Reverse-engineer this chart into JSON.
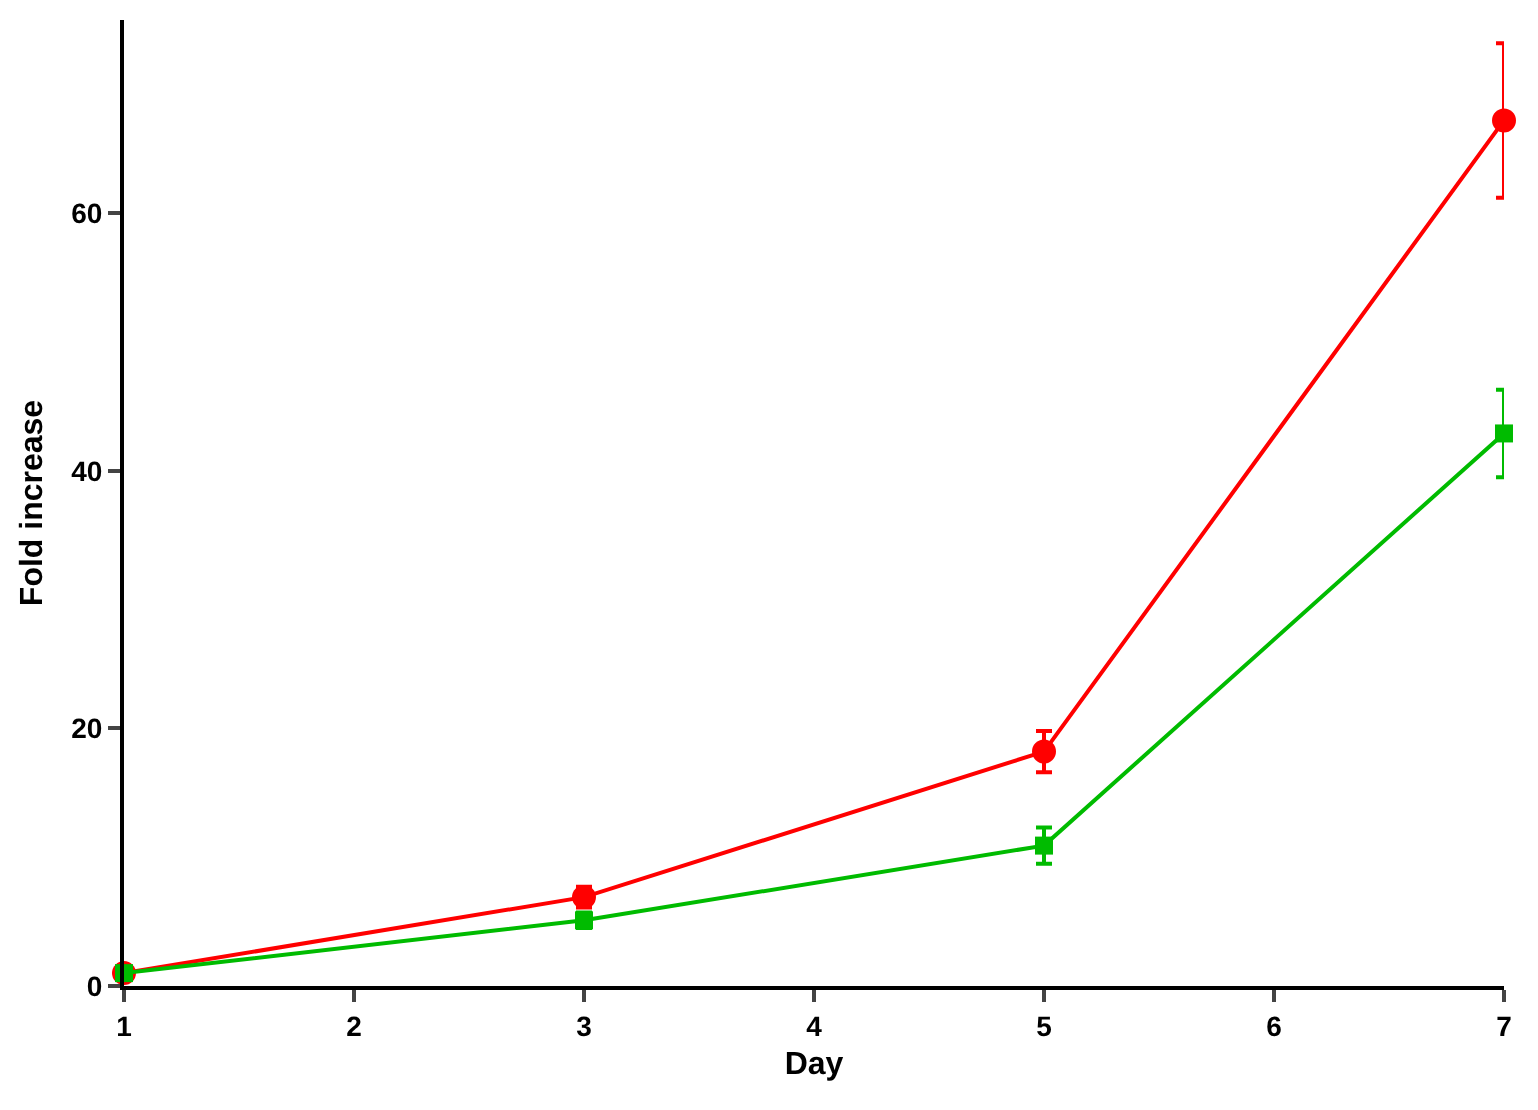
{
  "chart_data": {
    "type": "line",
    "xlabel": "Day",
    "ylabel": "Fold increase",
    "x": [
      1,
      3,
      5,
      7
    ],
    "series": [
      {
        "color": "#ff0000",
        "marker": "circle",
        "values": [
          1,
          6.9,
          18.2,
          67.2
        ],
        "errors": [
          null,
          0.8,
          1.6,
          6
        ]
      },
      {
        "color": "#00bb00",
        "marker": "square",
        "values": [
          1,
          5.1,
          10.9,
          42.9
        ],
        "errors": [
          null,
          0.6,
          1.4,
          3.4
        ]
      }
    ],
    "xlim": [
      1,
      7
    ],
    "xticks": [
      1,
      2,
      3,
      4,
      5,
      6,
      7
    ],
    "ylim": [
      0,
      75
    ],
    "yticks": [
      0,
      20,
      40,
      60
    ],
    "grid": false,
    "legend": false
  }
}
